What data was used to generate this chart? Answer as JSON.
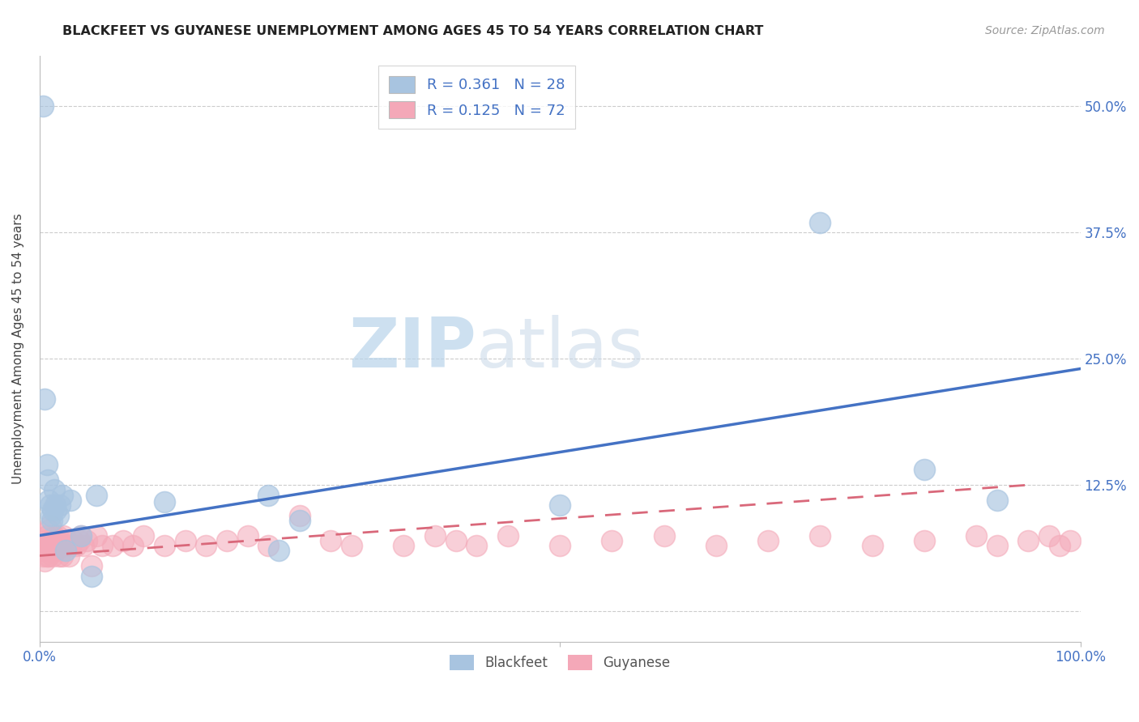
{
  "title": "BLACKFEET VS GUYANESE UNEMPLOYMENT AMONG AGES 45 TO 54 YEARS CORRELATION CHART",
  "source": "Source: ZipAtlas.com",
  "ylabel": "Unemployment Among Ages 45 to 54 years",
  "xlim": [
    0,
    1.0
  ],
  "ylim": [
    -0.03,
    0.55
  ],
  "ytick_positions": [
    0.0,
    0.125,
    0.25,
    0.375,
    0.5
  ],
  "ytick_labels": [
    "",
    "12.5%",
    "25.0%",
    "37.5%",
    "50.0%"
  ],
  "blackfeet_color": "#a8c4e0",
  "blackfeet_edge_color": "#a8c4e0",
  "guyanese_color": "#f4a8b8",
  "guyanese_edge_color": "#f4a8b8",
  "blackfeet_line_color": "#4472c4",
  "guyanese_line_color": "#d9687a",
  "tick_color": "#4472c4",
  "legend_R1": "R = 0.361",
  "legend_N1": "N = 28",
  "legend_R2": "R = 0.125",
  "legend_N2": "N = 72",
  "blackfeet_x": [
    0.003,
    0.005,
    0.007,
    0.008,
    0.009,
    0.01,
    0.011,
    0.012,
    0.013,
    0.014,
    0.015,
    0.016,
    0.018,
    0.02,
    0.022,
    0.025,
    0.03,
    0.04,
    0.05,
    0.055,
    0.12,
    0.22,
    0.23,
    0.25,
    0.5,
    0.75,
    0.85,
    0.92
  ],
  "blackfeet_y": [
    0.5,
    0.21,
    0.145,
    0.13,
    0.11,
    0.105,
    0.095,
    0.09,
    0.1,
    0.12,
    0.105,
    0.1,
    0.095,
    0.105,
    0.115,
    0.06,
    0.11,
    0.075,
    0.035,
    0.115,
    0.108,
    0.115,
    0.06,
    0.09,
    0.105,
    0.385,
    0.14,
    0.11
  ],
  "guyanese_x": [
    0.002,
    0.003,
    0.004,
    0.005,
    0.005,
    0.006,
    0.007,
    0.007,
    0.008,
    0.009,
    0.009,
    0.01,
    0.01,
    0.011,
    0.012,
    0.013,
    0.014,
    0.015,
    0.016,
    0.016,
    0.017,
    0.018,
    0.019,
    0.02,
    0.021,
    0.022,
    0.023,
    0.025,
    0.027,
    0.028,
    0.03,
    0.032,
    0.035,
    0.038,
    0.04,
    0.042,
    0.045,
    0.05,
    0.055,
    0.06,
    0.07,
    0.08,
    0.09,
    0.1,
    0.12,
    0.14,
    0.16,
    0.18,
    0.2,
    0.22,
    0.25,
    0.28,
    0.3,
    0.35,
    0.38,
    0.4,
    0.42,
    0.45,
    0.5,
    0.55,
    0.6,
    0.65,
    0.7,
    0.75,
    0.8,
    0.85,
    0.9,
    0.92,
    0.95,
    0.97,
    0.98,
    0.99
  ],
  "guyanese_y": [
    0.06,
    0.055,
    0.065,
    0.07,
    0.05,
    0.065,
    0.055,
    0.075,
    0.065,
    0.055,
    0.08,
    0.085,
    0.06,
    0.07,
    0.065,
    0.055,
    0.075,
    0.065,
    0.07,
    0.06,
    0.075,
    0.065,
    0.055,
    0.07,
    0.065,
    0.055,
    0.075,
    0.065,
    0.07,
    0.055,
    0.065,
    0.07,
    0.065,
    0.07,
    0.075,
    0.065,
    0.07,
    0.045,
    0.075,
    0.065,
    0.065,
    0.07,
    0.065,
    0.075,
    0.065,
    0.07,
    0.065,
    0.07,
    0.075,
    0.065,
    0.095,
    0.07,
    0.065,
    0.065,
    0.075,
    0.07,
    0.065,
    0.075,
    0.065,
    0.07,
    0.075,
    0.065,
    0.07,
    0.075,
    0.065,
    0.07,
    0.075,
    0.065,
    0.07,
    0.075,
    0.065,
    0.07
  ],
  "bf_trend_x": [
    0.0,
    1.0
  ],
  "bf_trend_y": [
    0.075,
    0.24
  ],
  "gy_trend_x": [
    0.0,
    0.95
  ],
  "gy_trend_y": [
    0.055,
    0.125
  ]
}
